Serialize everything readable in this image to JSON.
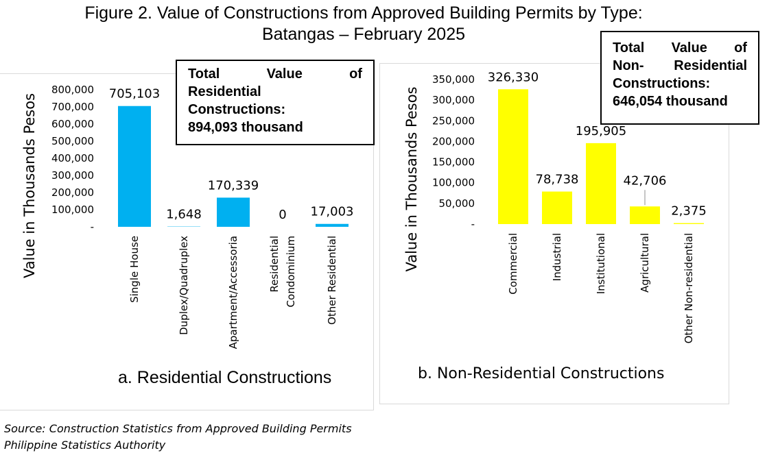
{
  "figure": {
    "title_line1": "Figure 2.  Value of Constructions from Approved Building Permits by Type:",
    "title_line2": "Batangas – February 2025"
  },
  "callouts": {
    "residential": {
      "line1_words": [
        "Total",
        "Value",
        "of"
      ],
      "line2": "Residential",
      "line3": "Constructions:",
      "line4": "894,093 thousand"
    },
    "nonresidential": {
      "line1_words": [
        "Total",
        "Value",
        "of"
      ],
      "line2_words": [
        "Non-",
        "Residential"
      ],
      "line3": "Constructions:",
      "line4": "646,054 thousand"
    }
  },
  "source": {
    "line1": "Source: Construction Statistics from Approved Building Permits",
    "line2": "Philippine Statistics Authority"
  },
  "chart_data": [
    {
      "type": "bar",
      "caption": "a. Residential Constructions",
      "ylabel": "Value in Thousands Pesos",
      "xlabel": "",
      "categories": [
        [
          "Single House"
        ],
        [
          "Duplex/Quadruplex"
        ],
        [
          "Apartment/Accessoria"
        ],
        [
          "Residential",
          "Condominium"
        ],
        [
          "Other Residential"
        ]
      ],
      "values": [
        705103,
        1648,
        170339,
        0,
        17003
      ],
      "value_labels": [
        "705,103",
        "1,648",
        "170,339",
        "0",
        "17,003"
      ],
      "yticks": [
        0,
        100000,
        200000,
        300000,
        400000,
        500000,
        600000,
        700000,
        800000
      ],
      "ytick_labels": [
        "-",
        "100,000",
        "200,000",
        "300,000",
        "400,000",
        "500,000",
        "600,000",
        "700,000",
        "800,000"
      ],
      "ylim": [
        0,
        800000
      ],
      "grid": false,
      "legend": "none",
      "bar_color": "#00b0f0"
    },
    {
      "type": "bar",
      "caption": "b. Non-Residential Constructions",
      "ylabel": "Value in Thousands Pesos",
      "xlabel": "",
      "categories": [
        [
          "Commercial"
        ],
        [
          "Industrial"
        ],
        [
          "Institutional"
        ],
        [
          "Agricultural"
        ],
        [
          "Other Non-residential"
        ]
      ],
      "values": [
        326330,
        78738,
        195905,
        42706,
        2375
      ],
      "value_labels": [
        "326,330",
        "78,738",
        "195,905",
        "42,706",
        "2,375"
      ],
      "yticks": [
        0,
        50000,
        100000,
        150000,
        200000,
        250000,
        300000,
        350000
      ],
      "ytick_labels": [
        "-",
        "50,000",
        "100,000",
        "150,000",
        "200,000",
        "250,000",
        "300,000",
        "350,000"
      ],
      "ylim": [
        0,
        350000
      ],
      "grid": false,
      "legend": "none",
      "bar_color": "#ffff00"
    }
  ]
}
